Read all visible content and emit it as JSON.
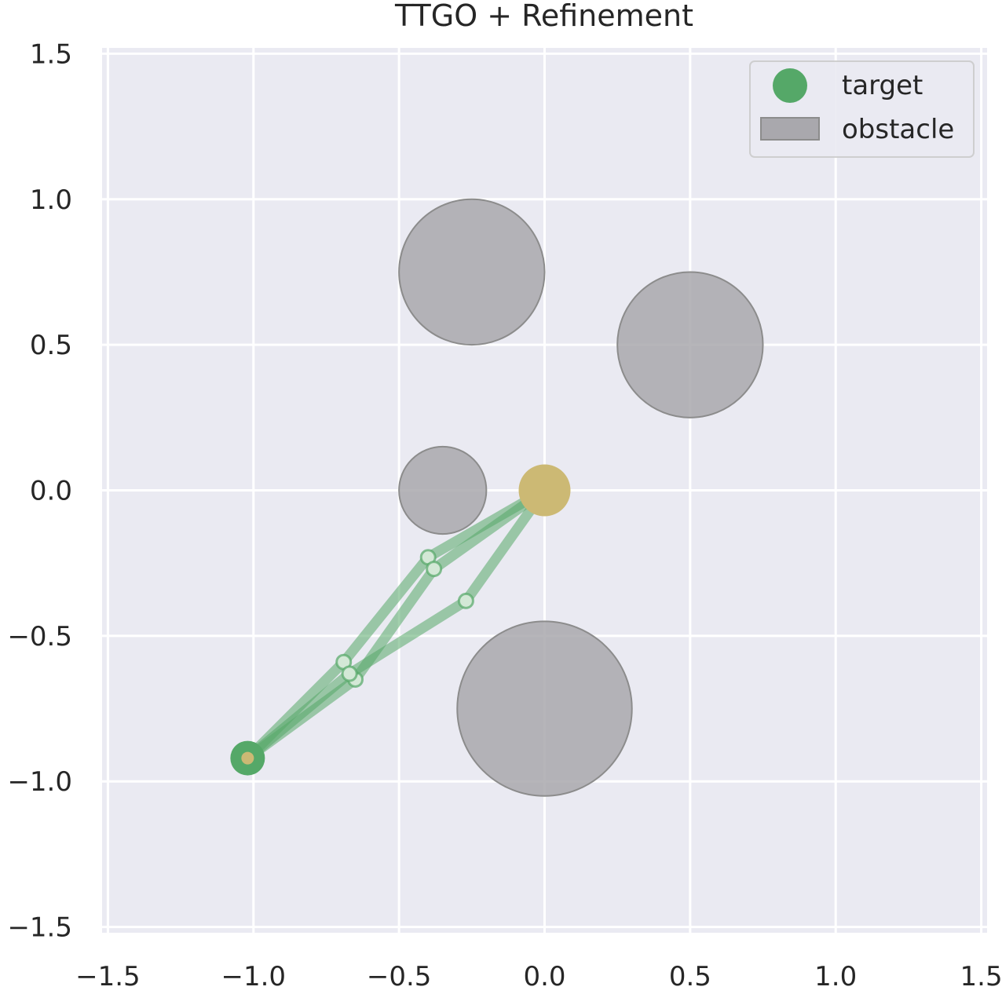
{
  "chart_data": {
    "type": "scatter",
    "title": "TTGO + Refinement",
    "xlabel": "",
    "ylabel": "",
    "xlim": [
      -1.52,
      1.52
    ],
    "ylim": [
      -1.52,
      1.52
    ],
    "xticks": [
      -1.5,
      -1.0,
      -0.5,
      0.0,
      0.5,
      1.0,
      1.5
    ],
    "yticks": [
      -1.5,
      -1.0,
      -0.5,
      0.0,
      0.5,
      1.0,
      1.5
    ],
    "xtick_labels": [
      "−1.5",
      "−1.0",
      "−0.5",
      "0.0",
      "0.5",
      "1.0",
      "1.5"
    ],
    "ytick_labels": [
      "−1.5",
      "−1.0",
      "−0.5",
      "0.0",
      "0.5",
      "1.0",
      "1.5"
    ],
    "grid": true,
    "legend_position": "top-right",
    "legend": [
      {
        "label": "target",
        "kind": "marker",
        "color": "#55a868"
      },
      {
        "label": "obstacle",
        "kind": "patch",
        "color": "#a9a8ad"
      }
    ],
    "obstacles": [
      {
        "cx": -0.25,
        "cy": 0.75,
        "r": 0.25
      },
      {
        "cx": 0.5,
        "cy": 0.5,
        "r": 0.25
      },
      {
        "cx": -0.35,
        "cy": 0.0,
        "r": 0.15
      },
      {
        "cx": 0.0,
        "cy": -0.75,
        "r": 0.3
      }
    ],
    "base": {
      "x": 0.0,
      "y": 0.0,
      "color": "#ccb974"
    },
    "target": {
      "x": -1.02,
      "y": -0.92,
      "color": "#55a868"
    },
    "arm_configurations": [
      {
        "joints": [
          [
            0.0,
            0.0
          ],
          [
            -0.4,
            -0.23
          ],
          [
            -0.69,
            -0.59
          ],
          [
            -1.02,
            -0.92
          ]
        ]
      },
      {
        "joints": [
          [
            0.0,
            0.0
          ],
          [
            -0.38,
            -0.27
          ],
          [
            -0.65,
            -0.65
          ],
          [
            -1.02,
            -0.92
          ]
        ]
      },
      {
        "joints": [
          [
            0.0,
            0.0
          ],
          [
            -0.27,
            -0.38
          ],
          [
            -0.67,
            -0.63
          ],
          [
            -1.02,
            -0.92
          ]
        ]
      }
    ],
    "colors": {
      "background": "#eaeaf2",
      "grid": "#ffffff",
      "link": "#55a868",
      "obstacle_fill": "#a9a8ad",
      "obstacle_edge": "#8c8c8c",
      "joint_fill": "#d3e8d6",
      "base": "#ccb974"
    }
  }
}
